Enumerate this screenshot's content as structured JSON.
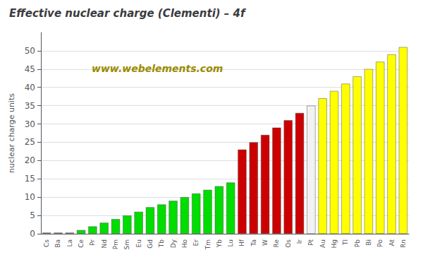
{
  "chart_data": {
    "type": "bar",
    "title": "Effective nuclear charge (Clementi) – 4f",
    "y_label": "nuclear charge units",
    "annotations": [
      "www.webelements.com"
    ],
    "categories": [
      "Cs",
      "Ba",
      "La",
      "Ce",
      "Pr",
      "Nd",
      "Pm",
      "Sm",
      "Eu",
      "Gd",
      "Tb",
      "Dy",
      "Ho",
      "Er",
      "Tm",
      "Yb",
      "Lu",
      "Hf",
      "Ta",
      "W",
      "Re",
      "Os",
      "Ir",
      "Pt",
      "Au",
      "Hg",
      "Tl",
      "Pb",
      "Bi",
      "Po",
      "At",
      "Rn"
    ],
    "values": [
      0.3,
      0.3,
      0.3,
      1.0,
      2.0,
      3.0,
      4.0,
      5.0,
      6.0,
      7.25,
      8.0,
      9.0,
      10.0,
      11.0,
      12.0,
      13.0,
      14.0,
      23.0,
      25.0,
      27.0,
      29.0,
      31.0,
      33.0,
      35.0,
      37.0,
      39.0,
      41.0,
      43.0,
      45.0,
      47.0,
      49.0,
      51.0
    ],
    "colors": [
      "#777777",
      "#777777",
      "#777777",
      "#00dd00",
      "#00dd00",
      "#00dd00",
      "#00dd00",
      "#00dd00",
      "#00dd00",
      "#00dd00",
      "#00dd00",
      "#00dd00",
      "#00dd00",
      "#00dd00",
      "#00dd00",
      "#00dd00",
      "#00dd00",
      "#cc0000",
      "#cc0000",
      "#cc0000",
      "#cc0000",
      "#cc0000",
      "#cc0000",
      "#f2f2f2",
      "#ffff00",
      "#ffff00",
      "#ffff00",
      "#ffff00",
      "#ffff00",
      "#ffff00",
      "#ffff00",
      "#ffff00"
    ],
    "ylim": [
      0,
      55
    ],
    "yticks": [
      0,
      5,
      10,
      15,
      20,
      25,
      30,
      35,
      40,
      45,
      50
    ],
    "grid": true
  }
}
